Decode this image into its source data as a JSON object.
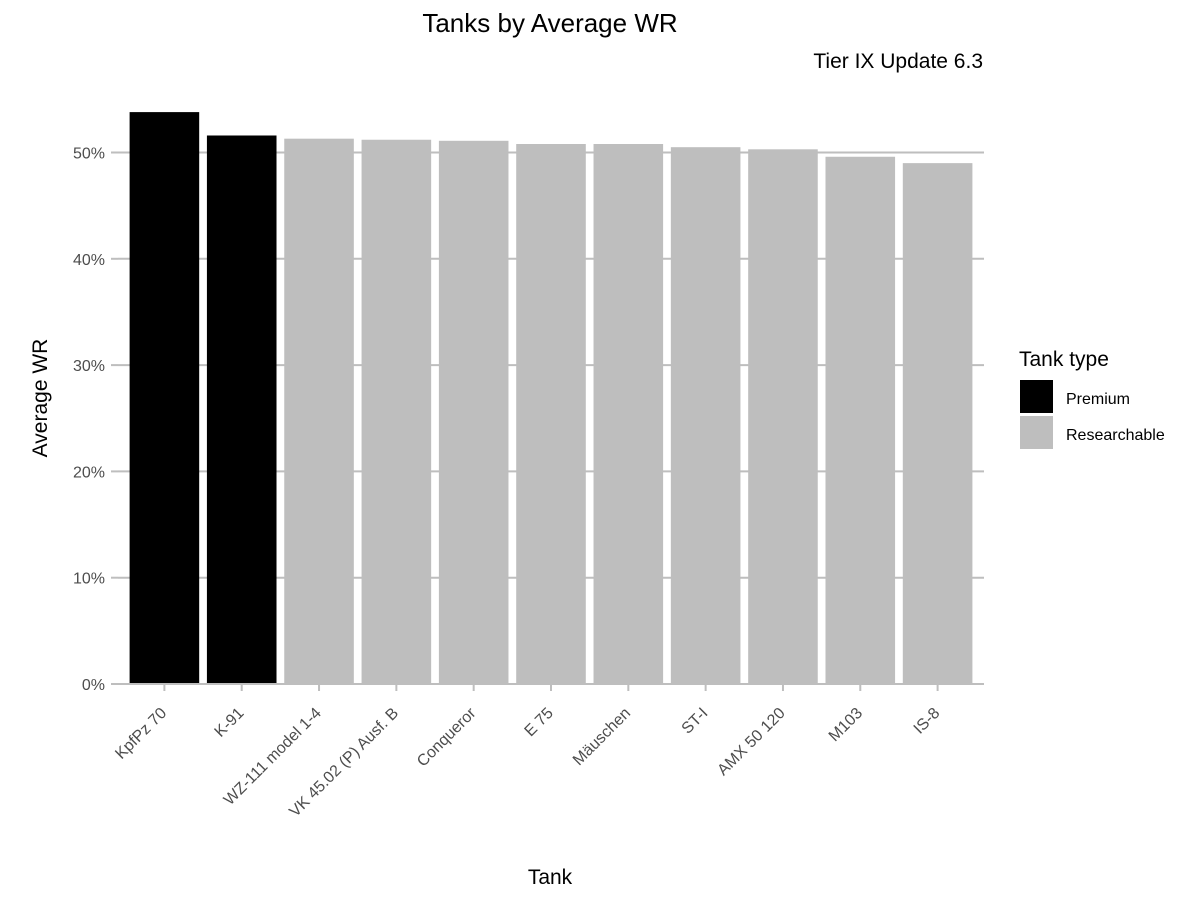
{
  "chart_data": {
    "type": "bar",
    "title": "Tanks by Average WR",
    "subtitle": "Tier IX Update 6.3",
    "xlabel": "Tank",
    "ylabel": "Average WR",
    "categories": [
      "KpfPz 70",
      "K-91",
      "WZ-111 model 1-4",
      "VK 45.02 (P) Ausf. B",
      "Conqueror",
      "E 75",
      "Mäuschen",
      "ST-I",
      "AMX 50 120",
      "M103",
      "IS-8"
    ],
    "values": [
      53.8,
      51.6,
      51.3,
      51.2,
      51.1,
      50.8,
      50.8,
      50.5,
      50.3,
      49.6,
      49.0
    ],
    "groups": [
      "Premium",
      "Premium",
      "Researchable",
      "Researchable",
      "Researchable",
      "Researchable",
      "Researchable",
      "Researchable",
      "Researchable",
      "Researchable",
      "Researchable"
    ],
    "ylim": [
      0,
      55
    ],
    "yticks": [
      0,
      10,
      20,
      30,
      40,
      50
    ],
    "ytick_labels": [
      "0%",
      "10%",
      "20%",
      "30%",
      "40%",
      "50%"
    ],
    "grid": true,
    "legend": {
      "title": "Tank type",
      "position": "right",
      "entries": [
        {
          "label": "Premium",
          "color": "#000000"
        },
        {
          "label": "Researchable",
          "color": "#bebebe"
        }
      ]
    }
  }
}
